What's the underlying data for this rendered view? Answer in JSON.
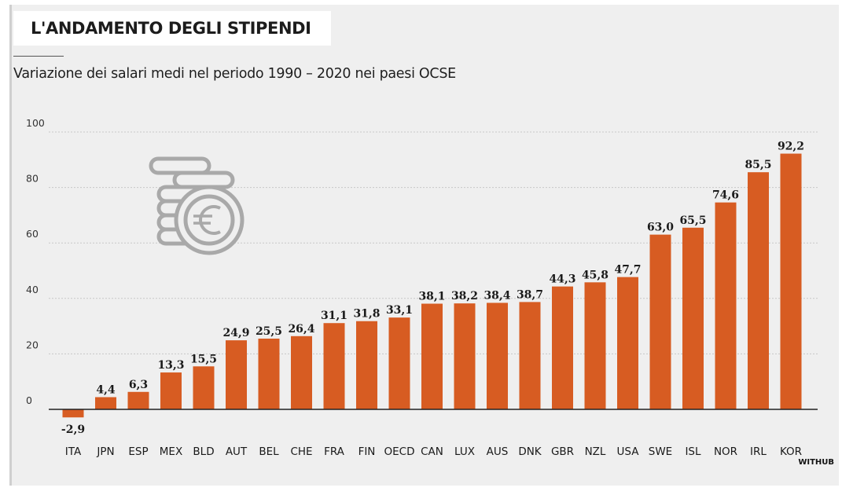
{
  "header": {
    "title": "L'ANDAMENTO DEGLI STIPENDI",
    "subtitle": "Variazione dei salari medi nel periodo 1990 – 2020 nei paesi OCSE"
  },
  "source": "WITHUB",
  "icon": "coins-euro-icon",
  "colors": {
    "bar": "#d75c22",
    "background": "#efefef",
    "grid": "#c8c8c8",
    "icon": "#a9a9a9"
  },
  "chart_data": {
    "type": "bar",
    "title": "",
    "xlabel": "",
    "ylabel": "",
    "ylim": [
      -5,
      100
    ],
    "yticks": [
      0,
      20,
      40,
      60,
      80,
      100
    ],
    "grid": true,
    "categories": [
      "ITA",
      "JPN",
      "ESP",
      "MEX",
      "BLD",
      "AUT",
      "BEL",
      "CHE",
      "FRA",
      "FIN",
      "OECD",
      "CAN",
      "LUX",
      "AUS",
      "DNK",
      "GBR",
      "NZL",
      "USA",
      "SWE",
      "ISL",
      "NOR",
      "IRL",
      "KOR"
    ],
    "values": [
      -2.9,
      4.4,
      6.3,
      13.3,
      15.5,
      24.9,
      25.5,
      26.4,
      31.1,
      31.8,
      33.1,
      38.1,
      38.2,
      38.4,
      38.7,
      44.3,
      45.8,
      47.7,
      63.0,
      65.5,
      74.6,
      85.5,
      92.2
    ],
    "labels": [
      "-2,9",
      "4,4",
      "6,3",
      "13,3",
      "15,5",
      "24,9",
      "25,5",
      "26,4",
      "31,1",
      "31,8",
      "33,1",
      "38,1",
      "38,2",
      "38,4",
      "38,7",
      "44,3",
      "45,8",
      "47,7",
      "63,0",
      "65,5",
      "74,6",
      "85,5",
      "92,2"
    ]
  }
}
